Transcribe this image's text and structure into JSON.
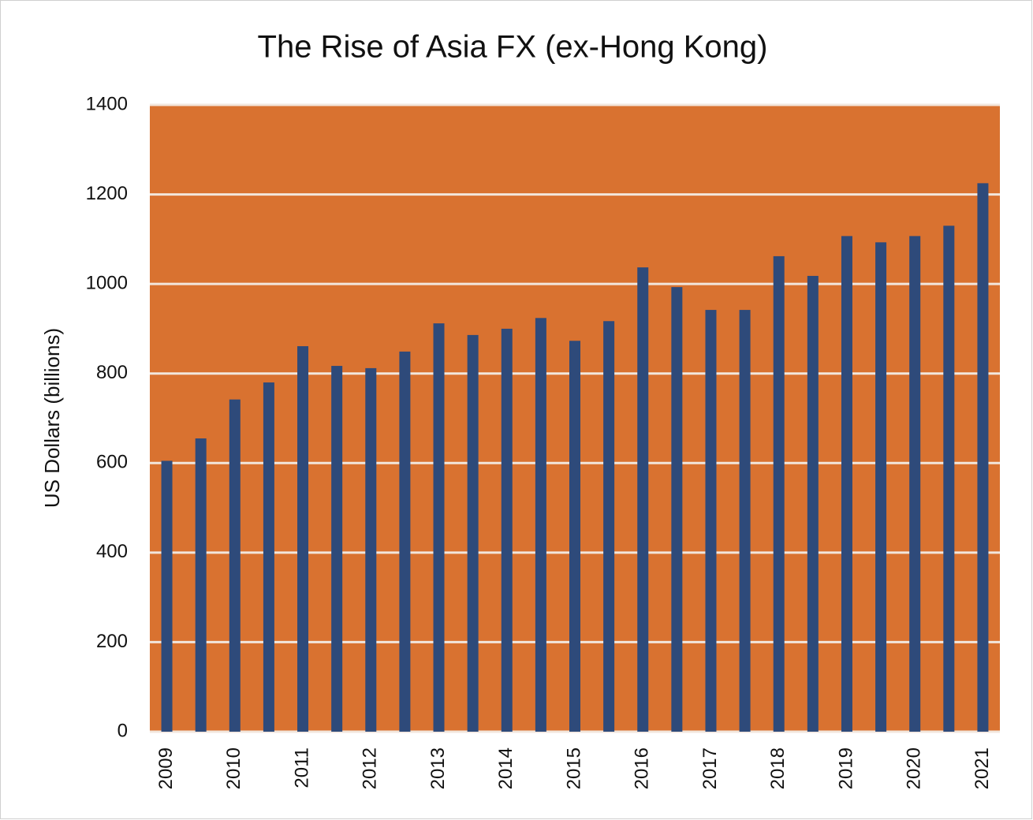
{
  "chart_data": {
    "type": "bar",
    "title": "The Rise of Asia FX (ex-Hong Kong)",
    "y_label": "US Dollars  (billions)",
    "categories": [
      "2009",
      null,
      "2010",
      null,
      "2011",
      null,
      "2012",
      null,
      "2013",
      null,
      "2014",
      null,
      "2015",
      null,
      "2016",
      null,
      "2017",
      null,
      "2018",
      null,
      "2019",
      null,
      "2020",
      null,
      "2021"
    ],
    "values": [
      605,
      655,
      742,
      780,
      861,
      817,
      812,
      849,
      912,
      886,
      900,
      924,
      873,
      917,
      1037,
      993,
      942,
      942,
      1062,
      1018,
      1107,
      1093,
      1107,
      1130,
      1225
    ],
    "color": "#2e4a7a",
    "background": "#d97230",
    "ylim": [
      0,
      1400
    ],
    "yticks": [
      0,
      200,
      400,
      600,
      800,
      1000,
      1200,
      1400
    ],
    "grid": true
  }
}
